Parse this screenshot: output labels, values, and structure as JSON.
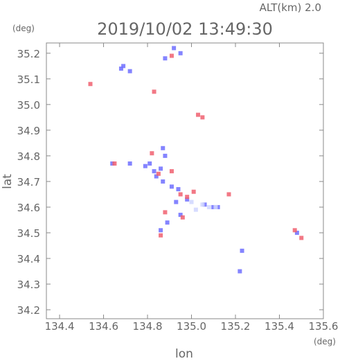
{
  "chart_data": {
    "type": "scatter",
    "header": "ALT(km) 2.0",
    "title": "2019/10/02 13:49:30",
    "y_unit": "(deg)",
    "x_unit": "(deg)",
    "ylabel": "lat",
    "xlabel": "lon",
    "xlim": [
      134.34,
      135.6
    ],
    "ylim": [
      34.165,
      35.24
    ],
    "xticks": [
      134.4,
      134.6,
      134.8,
      {
        "value": 135,
        "label": "135.0"
      },
      135.2,
      135.4,
      135.6
    ],
    "yticks": [
      34.2,
      34.3,
      34.4,
      34.5,
      34.6,
      34.7,
      34.8,
      34.9,
      {
        "value": 35,
        "label": "35.0"
      },
      35.1,
      35.2
    ],
    "series": [
      {
        "color": "#6f6fff",
        "x": [
          134.92,
          134.95,
          134.88,
          134.69,
          134.72,
          134.68,
          134.87,
          134.88,
          134.81,
          134.83,
          134.86,
          134.79,
          134.84,
          134.87,
          134.91,
          134.94,
          134.93,
          134.98,
          135.06,
          135.1,
          135.12,
          134.95,
          134.86,
          134.89,
          135.23,
          135.22,
          135.48,
          134.64,
          134.72
        ],
        "values": [
          35.22,
          35.2,
          35.18,
          35.15,
          35.13,
          35.14,
          34.83,
          34.8,
          34.77,
          34.74,
          34.75,
          34.76,
          34.72,
          34.7,
          34.68,
          34.67,
          34.62,
          34.63,
          34.61,
          34.6,
          34.6,
          34.57,
          34.51,
          34.54,
          34.43,
          34.35,
          34.5,
          34.77,
          34.77
        ]
      },
      {
        "color": "#f06070",
        "x": [
          134.91,
          134.54,
          134.83,
          135.03,
          135.05,
          134.82,
          134.85,
          134.91,
          134.95,
          134.98,
          135.01,
          134.88,
          134.86,
          134.96,
          135.47,
          135.5,
          135.17,
          134.65
        ],
        "values": [
          35.19,
          35.08,
          35.05,
          34.96,
          34.95,
          34.81,
          34.73,
          34.74,
          34.65,
          34.64,
          34.66,
          34.58,
          34.49,
          34.56,
          34.51,
          34.48,
          34.65,
          34.77
        ]
      },
      {
        "color": "#d0d6ff",
        "x": [
          135.05,
          135.08,
          135.11,
          135.02,
          135.0
        ],
        "values": [
          34.61,
          34.6,
          34.6,
          34.59,
          34.62
        ]
      }
    ]
  }
}
